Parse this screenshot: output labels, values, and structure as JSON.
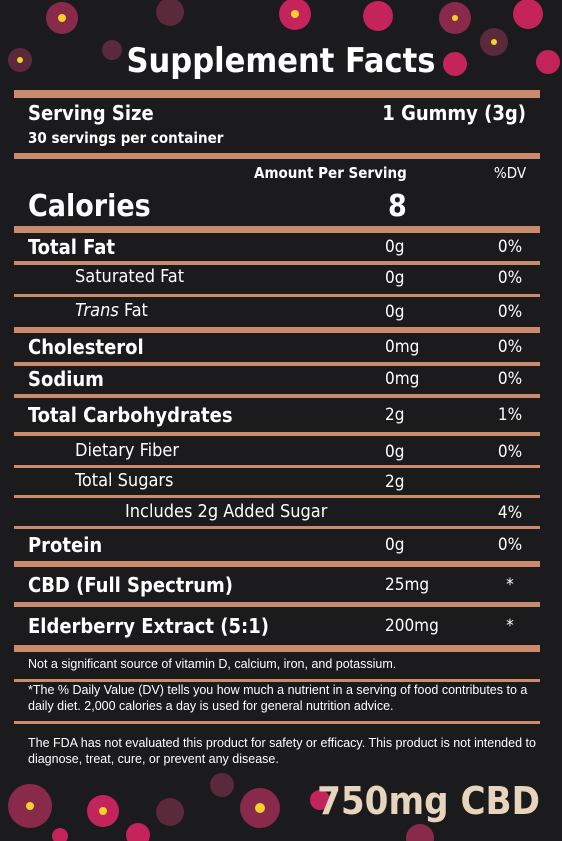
{
  "header": {
    "title": "Supplement Facts",
    "serving_size_label": "Serving Size",
    "serving_size_value": "1 Gummy (3g)",
    "servings_per_container": "30 servings per container",
    "amount_per_serving": "Amount Per Serving",
    "dv_header": "%DV",
    "calories_label": "Calories",
    "calories_value": "8"
  },
  "rows": [
    {
      "label": "Total Fat",
      "amount": "0g",
      "dv": "0%"
    },
    {
      "label": "Saturated Fat",
      "amount": "0g",
      "dv": "0%"
    },
    {
      "label_italic": "Trans",
      "label": "Fat",
      "amount": "0g",
      "dv": "0%"
    },
    {
      "label": "Cholesterol",
      "amount": "0mg",
      "dv": "0%"
    },
    {
      "label": "Sodium",
      "amount": "0mg",
      "dv": "0%"
    },
    {
      "label": "Total Carbohydrates",
      "amount": "2g",
      "dv": "1%"
    },
    {
      "label": "Dietary Fiber",
      "amount": "0g",
      "dv": "0%"
    },
    {
      "label": "Total Sugars",
      "amount": "2g"
    },
    {
      "label": "Includes 2g Added Sugar",
      "dv": "4%"
    },
    {
      "label": "Protein",
      "amount": "0g",
      "dv": "0%"
    },
    {
      "label": "CBD (Full Spectrum)",
      "amount": "25mg",
      "dv": "*"
    },
    {
      "label": "Elderberry Extract (5:1)",
      "amount": "200mg",
      "dv": "*"
    }
  ],
  "footnotes": [
    "Not a significant source of vitamin D, calcium, iron, and potassium.",
    "*The % Daily Value (DV) tells you how much a nutrient in a serving of food contributes to a daily diet. 2,000 calories a day is used for general nutrition advice.",
    "The FDA has not evaluated this product for safety or efficacy. This product is not intended to diagnose, treat, cure, or prevent any disease."
  ],
  "badge": "750mg CBD"
}
